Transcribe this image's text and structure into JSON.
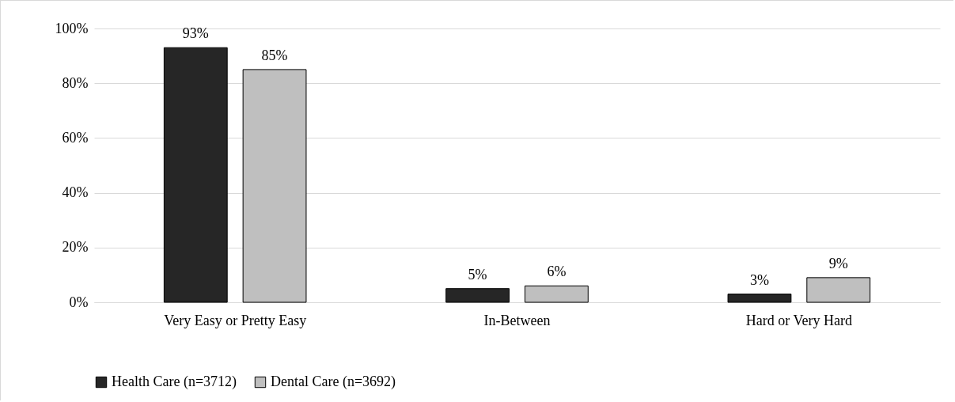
{
  "chart_data": {
    "type": "bar",
    "categories": [
      "Very Easy or Pretty Easy",
      "In-Between",
      "Hard or Very Hard"
    ],
    "series": [
      {
        "name": "Health Care (n=3712)",
        "color": "#262626",
        "values": [
          93,
          5,
          3
        ],
        "value_labels": [
          "93%",
          "5%",
          "3%"
        ]
      },
      {
        "name": "Dental Care (n=3692)",
        "color": "#bfbfbf",
        "values": [
          85,
          6,
          9
        ],
        "value_labels": [
          "85%",
          "6%",
          "9%"
        ]
      }
    ],
    "ylim": [
      0,
      100
    ],
    "yticks": [
      {
        "value": 0,
        "label": "0%"
      },
      {
        "value": 20,
        "label": "20%"
      },
      {
        "value": 40,
        "label": "40%"
      },
      {
        "value": 60,
        "label": "60%"
      },
      {
        "value": 80,
        "label": "80%"
      },
      {
        "value": 100,
        "label": "100%"
      }
    ],
    "grid": "y",
    "legend": "bottom"
  }
}
